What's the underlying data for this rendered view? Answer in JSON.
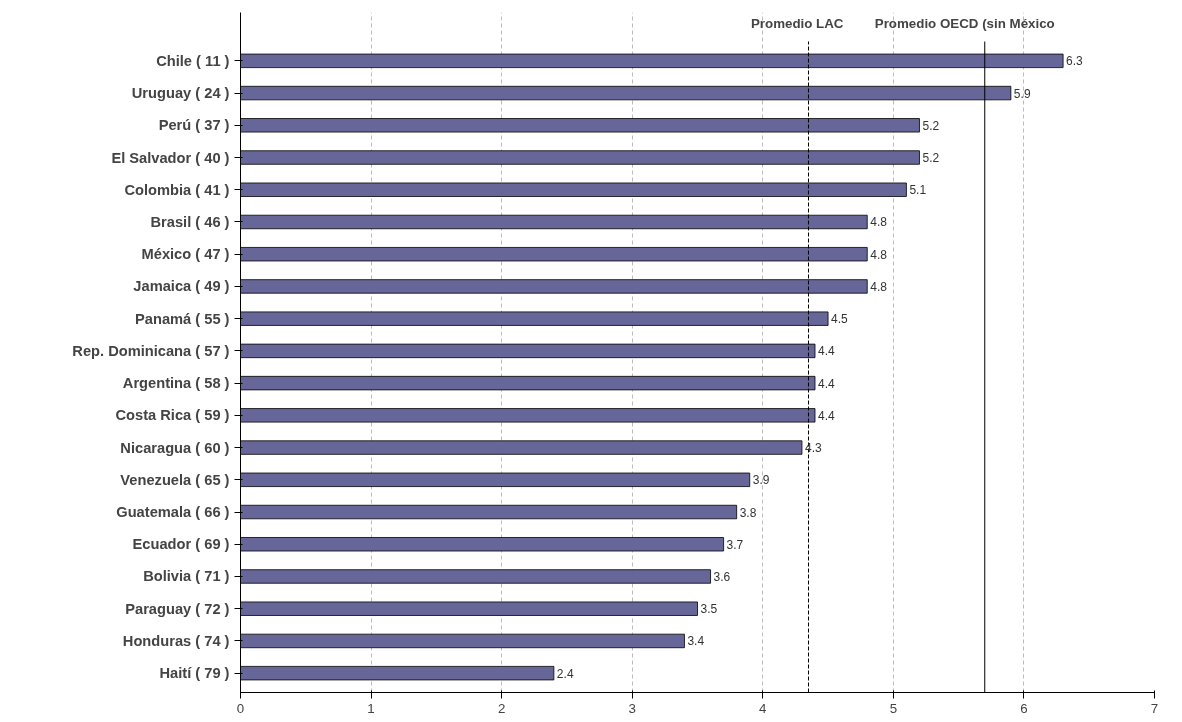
{
  "chart_data": {
    "type": "bar",
    "orientation": "horizontal",
    "categories": [
      "Chile ( 11 )",
      "Uruguay ( 24 )",
      "Perú ( 37 )",
      "El Salvador ( 40 )",
      "Colombia ( 41 )",
      "Brasil ( 46 )",
      "México ( 47 )",
      "Jamaica ( 49 )",
      "Panamá ( 55 )",
      "Rep. Dominicana ( 57 )",
      "Argentina ( 58 )",
      "Costa Rica ( 59 )",
      "Nicaragua ( 60 )",
      "Venezuela ( 65 )",
      "Guatemala ( 66 )",
      "Ecuador ( 69 )",
      "Bolivia ( 71 )",
      "Paraguay ( 72 )",
      "Honduras ( 74 )",
      "Haití ( 79 )"
    ],
    "values": [
      6.3,
      5.9,
      5.2,
      5.2,
      5.1,
      4.8,
      4.8,
      4.8,
      4.5,
      4.4,
      4.4,
      4.4,
      4.3,
      3.9,
      3.8,
      3.7,
      3.6,
      3.5,
      3.4,
      2.4
    ],
    "color": "#666699",
    "data_labels": true,
    "xlim": [
      0,
      7
    ],
    "xticks": [
      0,
      1,
      2,
      3,
      4,
      5,
      6,
      7
    ],
    "grid": "x",
    "ref_lines": [
      {
        "axis": "x",
        "value": 4.35,
        "label": "Promedio LAC",
        "line_style": "dashed",
        "color": "#000000"
      },
      {
        "axis": "x",
        "value": 5.7,
        "label": "Promedio OECD (sin México",
        "line_style": "solid",
        "color": "#000000"
      }
    ]
  }
}
